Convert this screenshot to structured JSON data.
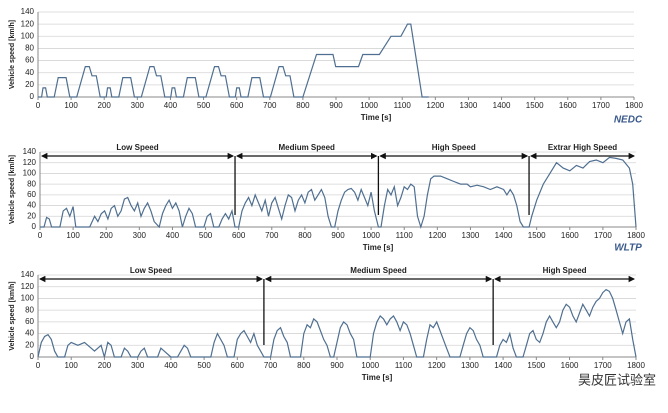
{
  "chart_data": [
    {
      "type": "line",
      "label": "NEDC",
      "xlabel": "Time [s]",
      "ylabel": "Vehicle speed [km/h]",
      "color": "#4f6f91",
      "grid": true,
      "xlim": [
        0,
        1800
      ],
      "xticks": [
        0,
        100,
        200,
        300,
        400,
        500,
        600,
        700,
        800,
        900,
        1000,
        1100,
        1200,
        1300,
        1400,
        1500,
        1600,
        1700,
        1800
      ],
      "ylim": [
        0,
        140
      ],
      "yticks": [
        0,
        20,
        40,
        60,
        80,
        100,
        120,
        140
      ],
      "x": [
        0,
        11,
        15,
        23,
        28,
        49,
        61,
        85,
        96,
        117,
        143,
        155,
        163,
        176,
        188,
        195,
        206,
        210,
        218,
        223,
        244,
        256,
        280,
        291,
        312,
        338,
        350,
        358,
        371,
        383,
        390,
        401,
        405,
        413,
        418,
        439,
        451,
        475,
        486,
        507,
        533,
        545,
        553,
        566,
        578,
        585,
        596,
        600,
        608,
        613,
        634,
        646,
        670,
        681,
        702,
        728,
        740,
        748,
        761,
        773,
        800,
        841,
        891,
        899,
        968,
        981,
        1031,
        1066,
        1096,
        1116,
        1126,
        1160,
        1180
      ],
      "values": [
        0,
        0,
        15,
        15,
        0,
        0,
        32,
        32,
        0,
        0,
        50,
        50,
        35,
        35,
        0,
        0,
        0,
        15,
        15,
        0,
        0,
        32,
        32,
        0,
        0,
        50,
        50,
        35,
        35,
        0,
        0,
        0,
        15,
        15,
        0,
        0,
        32,
        32,
        0,
        0,
        50,
        50,
        35,
        35,
        0,
        0,
        0,
        15,
        15,
        0,
        0,
        32,
        32,
        0,
        0,
        50,
        50,
        35,
        35,
        0,
        0,
        70,
        70,
        50,
        50,
        70,
        70,
        100,
        100,
        120,
        120,
        0,
        0
      ]
    },
    {
      "type": "line",
      "label": "WLTP",
      "xlabel": "Time [s]",
      "ylabel": "Vehicle speed [km/h]",
      "color": "#4f6f91",
      "grid": true,
      "xlim": [
        0,
        1800
      ],
      "xticks": [
        0,
        100,
        200,
        300,
        400,
        500,
        600,
        700,
        800,
        900,
        1000,
        1100,
        1200,
        1300,
        1400,
        1500,
        1600,
        1700,
        1800
      ],
      "ylim": [
        0,
        140
      ],
      "yticks": [
        0,
        20,
        40,
        60,
        80,
        100,
        120,
        140
      ],
      "sections": [
        {
          "label": "Low Speed",
          "start": 0,
          "end": 589
        },
        {
          "label": "Medium Speed",
          "start": 589,
          "end": 1022
        },
        {
          "label": "High Speed",
          "start": 1022,
          "end": 1477
        },
        {
          "label": "Extrar High Speed",
          "start": 1477,
          "end": 1800
        }
      ],
      "x": [
        0,
        12,
        20,
        28,
        35,
        60,
        70,
        80,
        90,
        100,
        108,
        130,
        150,
        165,
        175,
        185,
        195,
        205,
        215,
        225,
        235,
        245,
        255,
        265,
        275,
        285,
        295,
        305,
        315,
        325,
        335,
        345,
        360,
        370,
        380,
        390,
        400,
        410,
        420,
        430,
        440,
        450,
        460,
        470,
        495,
        505,
        515,
        525,
        540,
        550,
        560,
        570,
        580,
        589,
        600,
        610,
        620,
        630,
        640,
        650,
        660,
        670,
        680,
        690,
        700,
        710,
        720,
        730,
        740,
        750,
        760,
        770,
        780,
        790,
        800,
        810,
        820,
        830,
        840,
        850,
        860,
        870,
        880,
        890,
        900,
        910,
        920,
        930,
        940,
        950,
        960,
        970,
        980,
        990,
        1000,
        1010,
        1022,
        1030,
        1040,
        1050,
        1060,
        1070,
        1080,
        1090,
        1100,
        1110,
        1120,
        1130,
        1140,
        1150,
        1160,
        1170,
        1180,
        1190,
        1210,
        1230,
        1250,
        1270,
        1290,
        1300,
        1320,
        1340,
        1360,
        1380,
        1400,
        1410,
        1420,
        1430,
        1440,
        1450,
        1460,
        1477,
        1485,
        1500,
        1520,
        1540,
        1560,
        1580,
        1600,
        1620,
        1640,
        1660,
        1680,
        1700,
        1720,
        1740,
        1760,
        1780,
        1790,
        1800
      ],
      "values": [
        0,
        0,
        18,
        15,
        0,
        0,
        30,
        35,
        20,
        38,
        0,
        0,
        0,
        20,
        10,
        25,
        30,
        15,
        35,
        40,
        20,
        30,
        52,
        55,
        40,
        30,
        45,
        20,
        35,
        45,
        30,
        10,
        0,
        25,
        40,
        50,
        35,
        45,
        30,
        0,
        20,
        35,
        25,
        0,
        0,
        20,
        25,
        0,
        0,
        15,
        25,
        15,
        30,
        0,
        0,
        30,
        45,
        55,
        40,
        60,
        45,
        30,
        50,
        20,
        45,
        55,
        35,
        15,
        40,
        60,
        55,
        30,
        50,
        60,
        45,
        65,
        70,
        50,
        60,
        70,
        55,
        20,
        0,
        0,
        30,
        50,
        65,
        70,
        72,
        65,
        50,
        70,
        55,
        40,
        65,
        30,
        0,
        0,
        40,
        70,
        60,
        75,
        40,
        55,
        75,
        70,
        80,
        75,
        20,
        0,
        20,
        60,
        90,
        95,
        95,
        90,
        85,
        80,
        80,
        75,
        78,
        75,
        70,
        75,
        70,
        60,
        70,
        60,
        40,
        10,
        0,
        0,
        20,
        50,
        80,
        100,
        120,
        110,
        105,
        115,
        110,
        122,
        125,
        120,
        130,
        128,
        125,
        110,
        80,
        0
      ]
    },
    {
      "type": "line",
      "xlabel": "Time [s]",
      "ylabel": "Vehicle speed [km/h]",
      "color": "#4f6f91",
      "grid": true,
      "xlim": [
        0,
        1800
      ],
      "xticks": [
        0,
        100,
        200,
        300,
        400,
        500,
        600,
        700,
        800,
        900,
        1000,
        1100,
        1200,
        1300,
        1400,
        1500,
        1600,
        1700,
        1800
      ],
      "ylim": [
        0,
        140
      ],
      "yticks": [
        0,
        20,
        40,
        60,
        80,
        100,
        120,
        140
      ],
      "sections": [
        {
          "label": "Low Speed",
          "start": 0,
          "end": 680
        },
        {
          "label": "Medium Speed",
          "start": 680,
          "end": 1370
        },
        {
          "label": "High Speed",
          "start": 1370,
          "end": 1800
        }
      ],
      "x": [
        0,
        10,
        20,
        30,
        40,
        50,
        60,
        80,
        90,
        100,
        120,
        140,
        160,
        170,
        190,
        200,
        210,
        220,
        230,
        250,
        260,
        270,
        280,
        300,
        310,
        320,
        330,
        360,
        370,
        380,
        400,
        420,
        430,
        440,
        450,
        460,
        520,
        530,
        540,
        550,
        560,
        570,
        590,
        600,
        610,
        620,
        630,
        640,
        650,
        660,
        670,
        680,
        700,
        710,
        720,
        730,
        740,
        750,
        760,
        790,
        800,
        810,
        820,
        830,
        840,
        850,
        860,
        870,
        880,
        890,
        900,
        910,
        920,
        930,
        940,
        950,
        960,
        1000,
        1010,
        1020,
        1030,
        1040,
        1050,
        1060,
        1070,
        1080,
        1090,
        1100,
        1110,
        1120,
        1130,
        1140,
        1160,
        1170,
        1180,
        1190,
        1200,
        1210,
        1220,
        1230,
        1240,
        1270,
        1280,
        1290,
        1300,
        1310,
        1320,
        1330,
        1340,
        1370,
        1380,
        1390,
        1400,
        1410,
        1420,
        1430,
        1440,
        1460,
        1470,
        1480,
        1490,
        1500,
        1510,
        1520,
        1530,
        1540,
        1550,
        1560,
        1570,
        1580,
        1590,
        1600,
        1610,
        1620,
        1630,
        1640,
        1650,
        1660,
        1670,
        1680,
        1690,
        1700,
        1710,
        1720,
        1730,
        1740,
        1750,
        1760,
        1770,
        1780,
        1790,
        1800
      ],
      "values": [
        0,
        25,
        35,
        38,
        30,
        10,
        0,
        0,
        20,
        25,
        20,
        25,
        15,
        10,
        20,
        0,
        25,
        20,
        0,
        0,
        15,
        10,
        0,
        0,
        10,
        15,
        0,
        0,
        15,
        10,
        0,
        0,
        10,
        20,
        15,
        0,
        0,
        25,
        40,
        30,
        20,
        0,
        0,
        30,
        40,
        45,
        35,
        25,
        40,
        20,
        10,
        0,
        0,
        30,
        45,
        50,
        35,
        25,
        0,
        0,
        40,
        55,
        50,
        65,
        60,
        45,
        30,
        20,
        0,
        0,
        25,
        50,
        60,
        55,
        40,
        30,
        0,
        0,
        40,
        60,
        70,
        65,
        55,
        65,
        70,
        60,
        45,
        60,
        55,
        40,
        20,
        0,
        0,
        30,
        55,
        50,
        60,
        45,
        30,
        15,
        0,
        0,
        20,
        40,
        50,
        45,
        30,
        20,
        0,
        0,
        0,
        20,
        30,
        25,
        40,
        15,
        0,
        0,
        20,
        40,
        45,
        30,
        25,
        40,
        60,
        70,
        60,
        50,
        60,
        80,
        90,
        85,
        70,
        60,
        75,
        90,
        80,
        70,
        85,
        95,
        100,
        110,
        115,
        112,
        100,
        80,
        60,
        40,
        60,
        65,
        30,
        0
      ]
    }
  ],
  "watermark": "昊皮匠试验室"
}
